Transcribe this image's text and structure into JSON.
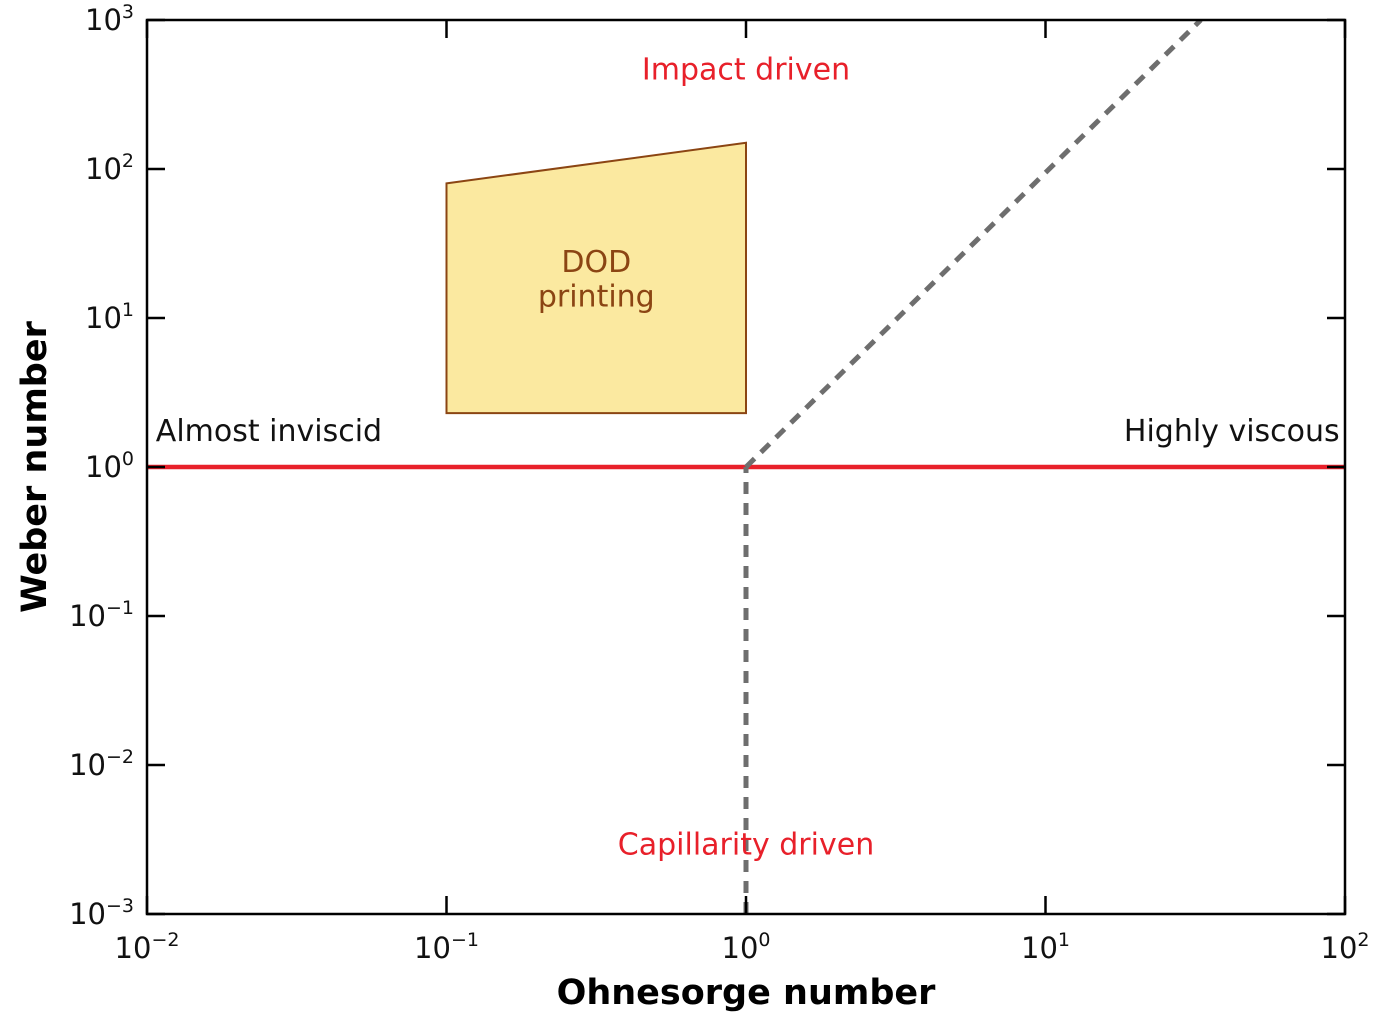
{
  "chart_data": {
    "type": "line",
    "xscale": "log",
    "yscale": "log",
    "xlabel": "Ohnesorge number",
    "ylabel": "Weber number",
    "xlim": [
      0.01,
      100
    ],
    "ylim": [
      0.001,
      1000
    ],
    "x_ticks": [
      {
        "value": 0.01,
        "base": "10",
        "exp": "−2"
      },
      {
        "value": 0.1,
        "base": "10",
        "exp": "−1"
      },
      {
        "value": 1,
        "base": "10",
        "exp": "0"
      },
      {
        "value": 10,
        "base": "10",
        "exp": "1"
      },
      {
        "value": 100,
        "base": "10",
        "exp": "2"
      }
    ],
    "y_ticks": [
      {
        "value": 0.001,
        "base": "10",
        "exp": "−3"
      },
      {
        "value": 0.01,
        "base": "10",
        "exp": "−2"
      },
      {
        "value": 0.1,
        "base": "10",
        "exp": "−1"
      },
      {
        "value": 1,
        "base": "10",
        "exp": "0"
      },
      {
        "value": 10,
        "base": "10",
        "exp": "1"
      },
      {
        "value": 100,
        "base": "10",
        "exp": "2"
      },
      {
        "value": 1000,
        "base": "10",
        "exp": "3"
      }
    ],
    "grid": false,
    "lines": [
      {
        "kind": "solid",
        "color": "#e8202a",
        "points": [
          [
            0.01,
            1
          ],
          [
            100,
            1
          ]
        ]
      },
      {
        "kind": "dashed",
        "color": "#6e6e6e",
        "points": [
          [
            1,
            0.001
          ],
          [
            1,
            1
          ]
        ]
      },
      {
        "kind": "dashed",
        "color": "#6e6e6e",
        "points": [
          [
            1,
            1
          ],
          [
            33,
            1000
          ]
        ]
      }
    ],
    "region": {
      "label_lines": [
        "DOD",
        "printing"
      ],
      "fill": "#fbe9a0",
      "stroke": "#8b4513",
      "text_color": "#8b4513",
      "polygon": [
        [
          0.1,
          80
        ],
        [
          1,
          150
        ],
        [
          1,
          2.3
        ],
        [
          0.1,
          2.3
        ]
      ]
    },
    "annotations": [
      {
        "text": "Impact driven",
        "color": "#e8202a",
        "x": 1,
        "y": 400,
        "anchor": "middle"
      },
      {
        "text": "Capillarity driven",
        "color": "#e8202a",
        "x": 1,
        "y": 0.0025,
        "anchor": "middle"
      },
      {
        "text": "Almost inviscid",
        "color": "#111111",
        "x": 0.0107,
        "y": 1.5,
        "anchor": "start"
      },
      {
        "text": "Highly viscous",
        "color": "#111111",
        "x": 96,
        "y": 1.5,
        "anchor": "end"
      }
    ]
  }
}
